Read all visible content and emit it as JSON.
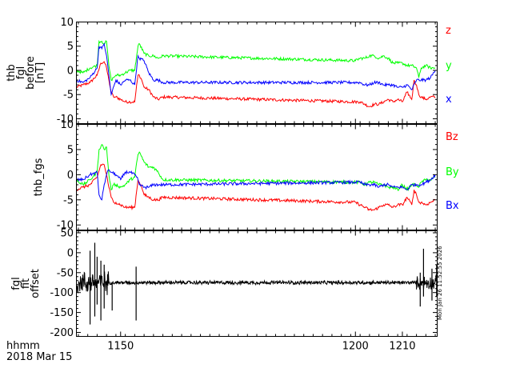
{
  "colors": {
    "z": "#ff0000",
    "y": "#00ff00",
    "x": "#0000ff",
    "axis": "#000000"
  },
  "footer": {
    "xlabel": "hhmm",
    "date": "2018 Mar 15"
  },
  "timestamp": "Mon Jan 26 11:52:55 2026",
  "chart_data": [
    {
      "type": "line",
      "ylabel": [
        "thb",
        "fgl",
        "before",
        "[nT]"
      ],
      "ylim": [
        -11,
        10
      ],
      "yticks": [
        10,
        5,
        0,
        -5,
        -10
      ],
      "xlim": [
        1140.5,
        1217.5
      ],
      "xticks": [
        {
          "v": 1150,
          "label": "1150"
        },
        {
          "v": 1200,
          "label": "1200"
        },
        {
          "v": 1210,
          "label": "1210"
        }
      ],
      "series": [
        {
          "name": "z",
          "color": "#ff0000",
          "x": [
            1140.5,
            1142,
            1143.5,
            1145,
            1145.8,
            1146.5,
            1147,
            1147.5,
            1148,
            1148.5,
            1149,
            1150,
            1151,
            1152,
            1153,
            1153.7,
            1154,
            1154.5,
            1155,
            1156,
            1157,
            1158,
            1159,
            1200,
            1201,
            1202,
            1203,
            1204,
            1205,
            1206,
            1207,
            1208,
            1209,
            1210,
            1211,
            1212,
            1212.5,
            1213,
            1213.5,
            1214,
            1215,
            1216,
            1217
          ],
          "y": [
            -3.5,
            -3,
            -2.5,
            -1,
            1.5,
            1.8,
            0.5,
            -2,
            -4.5,
            -5.5,
            -5.5,
            -6,
            -6.5,
            -6.5,
            -6.5,
            -1,
            -1,
            -2,
            -3.5,
            -4,
            -5.5,
            -6,
            -5.5,
            -6.5,
            -6.5,
            -7,
            -7.5,
            -7,
            -7,
            -6.5,
            -6,
            -6.5,
            -6,
            -6.5,
            -4.5,
            -6,
            -2,
            -3,
            -5,
            -5.5,
            -6,
            -5.5,
            -5.5
          ]
        },
        {
          "name": "y",
          "color": "#00ff00",
          "x": [
            1140.5,
            1142,
            1143.5,
            1145,
            1145.4,
            1146,
            1146.5,
            1147,
            1147.5,
            1148,
            1148.5,
            1149,
            1150,
            1151,
            1152,
            1153,
            1153.7,
            1154,
            1155,
            1156,
            1157,
            1158,
            1159,
            1200,
            1201,
            1202,
            1203,
            1204,
            1205,
            1206,
            1207,
            1208,
            1209,
            1210,
            1211,
            1212,
            1213,
            1213.5,
            1214,
            1215,
            1216,
            1217
          ],
          "y": [
            0,
            -0.5,
            0.5,
            1,
            6,
            6,
            5.5,
            6,
            1,
            -2,
            -1.5,
            -1,
            -1,
            -0.5,
            0,
            0,
            5,
            5.5,
            3.5,
            3,
            3,
            2.5,
            3,
            2,
            2.5,
            2.5,
            3,
            3,
            2.5,
            3,
            2.5,
            1.5,
            1.5,
            1.5,
            1,
            1,
            0.5,
            -1.5,
            0.5,
            1,
            0.5,
            0.5
          ]
        },
        {
          "name": "x",
          "color": "#0000ff",
          "x": [
            1140.5,
            1142,
            1143.5,
            1145,
            1145.4,
            1146,
            1146.5,
            1147,
            1147.5,
            1148,
            1149,
            1150,
            1151,
            1152,
            1153,
            1153.7,
            1154,
            1155,
            1156,
            1157,
            1158,
            1159,
            1200,
            1201,
            1202,
            1203,
            1204,
            1205,
            1206,
            1207,
            1208,
            1209,
            1210,
            1211,
            1212,
            1213,
            1214,
            1215,
            1216,
            1217
          ],
          "y": [
            -2,
            -2.5,
            -1.5,
            0.5,
            5,
            4.5,
            5.5,
            3,
            -1,
            -5,
            -2,
            -3,
            -2,
            -2,
            -3,
            3,
            2.5,
            2,
            -0.5,
            -2,
            -2,
            -2.5,
            -2.5,
            -2.5,
            -3,
            -3,
            -2.5,
            -2.5,
            -3,
            -3,
            -3,
            -3.5,
            -3.5,
            -3,
            -4,
            -2,
            -2,
            -2,
            -1.5,
            0
          ]
        }
      ],
      "legend": [
        {
          "label": "z",
          "color": "#ff0000"
        },
        {
          "label": "y",
          "color": "#00ff00"
        },
        {
          "label": "x",
          "color": "#0000ff"
        }
      ]
    },
    {
      "type": "line",
      "ylabel": [
        "thb_fgs"
      ],
      "ylim": [
        -11,
        10
      ],
      "yticks": [
        10,
        5,
        0,
        -5,
        -10
      ],
      "xlim": [
        1140.5,
        1217.5
      ],
      "series": [
        {
          "name": "Bz",
          "color": "#ff0000",
          "x": [
            1140.5,
            1142,
            1143.5,
            1145,
            1145.8,
            1146.5,
            1147,
            1147.5,
            1148,
            1148.5,
            1149,
            1150,
            1151,
            1152,
            1153,
            1153.7,
            1154,
            1154.5,
            1155,
            1156,
            1157,
            1158,
            1159,
            1200,
            1201,
            1202,
            1203,
            1204,
            1205,
            1206,
            1207,
            1208,
            1209,
            1210,
            1211,
            1212,
            1212.5,
            1213,
            1213.5,
            1214,
            1215,
            1216,
            1217
          ],
          "y": [
            -3,
            -2.5,
            -2,
            -0.5,
            2,
            2,
            0,
            -2.5,
            -4.5,
            -5.5,
            -5.5,
            -6,
            -6.5,
            -6.5,
            -6.5,
            -1,
            -1.5,
            -2.5,
            -4,
            -4.5,
            -5,
            -5,
            -4.5,
            -5.5,
            -6,
            -6.5,
            -7,
            -7,
            -6.5,
            -6,
            -6,
            -6.5,
            -6,
            -6,
            -4.5,
            -6,
            -3,
            -4,
            -5.5,
            -5.5,
            -6,
            -5.5,
            -5
          ]
        },
        {
          "name": "By",
          "color": "#00ff00",
          "x": [
            1140.5,
            1142,
            1143.5,
            1145,
            1145.4,
            1146,
            1146.5,
            1147,
            1147.5,
            1148,
            1148.5,
            1149,
            1150,
            1151,
            1152,
            1153,
            1153.7,
            1154,
            1155,
            1156,
            1157,
            1158,
            1159,
            1200,
            1201,
            1202,
            1203,
            1204,
            1205,
            1206,
            1207,
            1208,
            1209,
            1210,
            1211,
            1212,
            1213,
            1213.5,
            1214,
            1215,
            1216,
            1217
          ],
          "y": [
            -1,
            -2,
            -1,
            0.5,
            5,
            6,
            5,
            5.5,
            0,
            -3,
            -2,
            -2,
            -2.5,
            -2,
            -1,
            -0.5,
            4,
            4.5,
            2.5,
            1.5,
            1.5,
            0.5,
            -1,
            -1.5,
            -1.5,
            -2,
            -1.5,
            -1.5,
            -2,
            -2,
            -2.5,
            -2.5,
            -3,
            -2,
            -3,
            -2,
            -2,
            -2.5,
            -1.5,
            -1,
            -1,
            -0.5
          ]
        },
        {
          "name": "Bx",
          "color": "#0000ff",
          "x": [
            1140.5,
            1142,
            1143.5,
            1145,
            1145.4,
            1146,
            1146.5,
            1147,
            1147.5,
            1148,
            1149,
            1150,
            1151,
            1152,
            1153,
            1153.7,
            1154,
            1155,
            1156,
            1157,
            1158,
            1159,
            1200,
            1201,
            1202,
            1203,
            1204,
            1205,
            1206,
            1207,
            1208,
            1209,
            1210,
            1211,
            1212,
            1213,
            1214,
            1215,
            1216,
            1217
          ],
          "y": [
            -1,
            -1,
            0,
            0.5,
            -4,
            -5,
            -2,
            0,
            1,
            0.5,
            0,
            -1,
            0.5,
            0.5,
            0,
            -1,
            -2,
            -2.5,
            -2.5,
            -2,
            -2,
            -2,
            -1.5,
            -1.5,
            -2,
            -2,
            -2,
            -2.5,
            -2,
            -2,
            -2.5,
            -2.5,
            -2.5,
            -3,
            -2,
            -2,
            -2,
            -1.5,
            -1,
            0
          ]
        }
      ],
      "legend": [
        {
          "label": "Bz",
          "color": "#ff0000"
        },
        {
          "label": "By",
          "color": "#00ff00"
        },
        {
          "label": "Bx",
          "color": "#0000ff"
        }
      ]
    },
    {
      "type": "line",
      "ylabel": [
        "fgl",
        "fit",
        "offset"
      ],
      "ylim": [
        -210,
        55
      ],
      "yticks": [
        50,
        0,
        -50,
        -100,
        -150,
        -200
      ],
      "xlim": [
        1140.5,
        1217.5
      ],
      "series": [
        {
          "name": "offset",
          "color": "#000000",
          "baseline": -75,
          "noise_segments": [
            {
              "x0": 1140.5,
              "x1": 1147.5,
              "amp": 35
            },
            {
              "x0": 1147.5,
              "x1": 1213,
              "amp": 6
            },
            {
              "x0": 1213,
              "x1": 1217.5,
              "amp": 22
            }
          ],
          "spikes": [
            {
              "x": 1143.5,
              "min": -180,
              "max": 5
            },
            {
              "x": 1144.5,
              "min": -160,
              "max": 25
            },
            {
              "x": 1145,
              "min": -130,
              "max": -10
            },
            {
              "x": 1145.8,
              "min": -170,
              "max": -20
            },
            {
              "x": 1146.5,
              "min": -140,
              "max": -30
            },
            {
              "x": 1148.2,
              "min": -145,
              "max": -75
            },
            {
              "x": 1153.3,
              "min": -170,
              "max": -35
            },
            {
              "x": 1213.8,
              "min": -135,
              "max": -50
            },
            {
              "x": 1214.5,
              "min": -110,
              "max": 10
            },
            {
              "x": 1216.3,
              "min": -120,
              "max": -40
            },
            {
              "x": 1217.3,
              "min": -110,
              "max": -30
            }
          ]
        }
      ]
    }
  ]
}
